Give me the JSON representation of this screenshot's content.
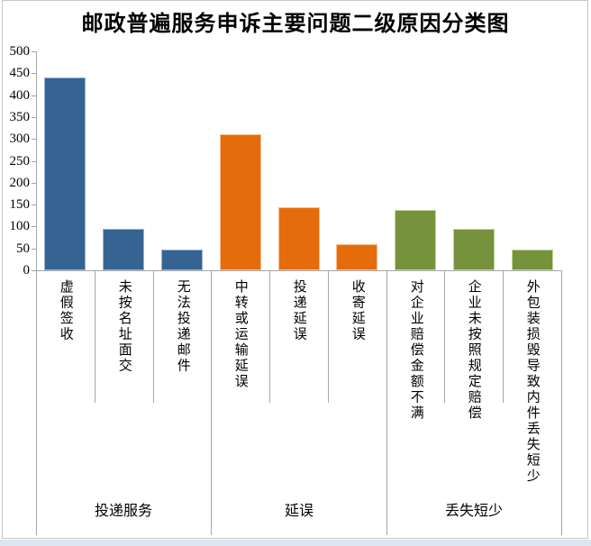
{
  "chart_data": {
    "type": "bar",
    "title": "邮政普遍服务申诉主要问题二级原因分类图",
    "xlabel": "",
    "ylabel": "",
    "ylim": [
      0,
      500
    ],
    "ytick_step": 50,
    "grid": false,
    "legend": "none",
    "axis_color": "#A6A6A6",
    "text_color": "#000000",
    "frame_color": "#C8C8C8",
    "page_strip_color": "#DCE6F1",
    "categories": [
      "虚假签收",
      "未按名址面交",
      "无法投递邮件",
      "中转或运输延误",
      "投递延误",
      "收寄延误",
      "对企业赔偿金额不满",
      "企业未按照规定赔偿",
      "外包装损毁导致内件丢失短少"
    ],
    "values": [
      440,
      95,
      47,
      310,
      145,
      60,
      137,
      95,
      48
    ],
    "groups": [
      {
        "label": "投递服务",
        "color": "#366492",
        "border_color": "#95B3D7",
        "items": [
          {
            "label": "虚假签收",
            "value": 440
          },
          {
            "label": "未按名址面交",
            "value": 95
          },
          {
            "label": "无法投递邮件",
            "value": 47
          }
        ]
      },
      {
        "label": "延误",
        "color": "#E46C0A",
        "border_color": "#FABF8F",
        "items": [
          {
            "label": "中转或运输延误",
            "value": 310
          },
          {
            "label": "投递延误",
            "value": 145
          },
          {
            "label": "收寄延误",
            "value": 60
          }
        ]
      },
      {
        "label": "丢失短少",
        "color": "#76923C",
        "border_color": "#C3D69B",
        "items": [
          {
            "label": "对企业赔偿金额不满",
            "value": 137
          },
          {
            "label": "企业未按照规定赔偿",
            "value": 95
          },
          {
            "label": "外包装损毁导致内件丢失短少",
            "value": 48
          }
        ]
      }
    ]
  }
}
